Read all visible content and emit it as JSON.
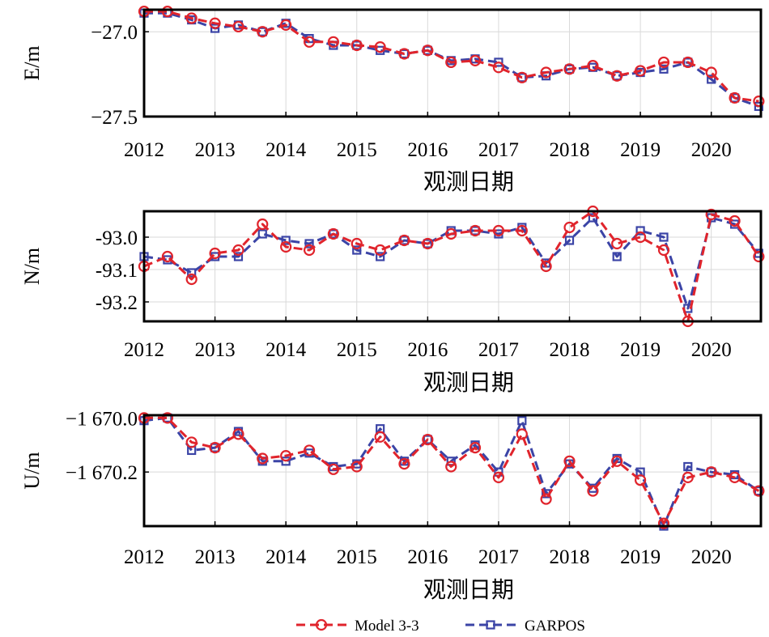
{
  "colors": {
    "model": "#e0242c",
    "garpos": "#3b44a6",
    "grid": "#d9d9d9",
    "axis": "#000000"
  },
  "legend": {
    "placement": "bottom-center"
  },
  "chart_data": [
    {
      "type": "line",
      "ylabel": "E/m",
      "xlabel": "观测日期",
      "ylim": [
        -27.5,
        -26.87
      ],
      "yticks": [
        -27.0,
        -27.5
      ],
      "ytick_labels": [
        "−27.0",
        "−27.5"
      ],
      "xticks": [
        2012,
        2013,
        2014,
        2015,
        2016,
        2017,
        2018,
        2019,
        2020
      ],
      "xtick_labels": [
        "2012",
        "2013",
        "2014",
        "2015",
        "2016",
        "2017",
        "2018",
        "2019",
        "2020"
      ],
      "xlim": [
        2012,
        2020.7
      ],
      "grid": true,
      "x": [
        2012.0,
        2012.33,
        2012.67,
        2013.0,
        2013.33,
        2013.67,
        2014.0,
        2014.33,
        2014.67,
        2015.0,
        2015.33,
        2015.67,
        2016.0,
        2016.33,
        2016.67,
        2017.0,
        2017.33,
        2017.67,
        2018.0,
        2018.33,
        2018.67,
        2019.0,
        2019.33,
        2019.67,
        2020.0,
        2020.33,
        2020.67
      ],
      "series": [
        {
          "name": "Model 3-3",
          "marker": "circle",
          "values": [
            -26.88,
            -26.88,
            -26.92,
            -26.95,
            -26.97,
            -27.0,
            -26.96,
            -27.06,
            -27.06,
            -27.08,
            -27.09,
            -27.13,
            -27.11,
            -27.18,
            -27.17,
            -27.21,
            -27.27,
            -27.24,
            -27.22,
            -27.2,
            -27.26,
            -27.23,
            -27.18,
            -27.18,
            -27.24,
            -27.39,
            -27.41
          ]
        },
        {
          "name": "GARPOS",
          "marker": "square",
          "values": [
            -26.89,
            -26.89,
            -26.93,
            -26.98,
            -26.96,
            -27.0,
            -26.95,
            -27.04,
            -27.08,
            -27.08,
            -27.11,
            -27.13,
            -27.11,
            -27.17,
            -27.16,
            -27.18,
            -27.27,
            -27.26,
            -27.22,
            -27.21,
            -27.26,
            -27.24,
            -27.22,
            -27.18,
            -27.28,
            -27.39,
            -27.44
          ]
        }
      ]
    },
    {
      "type": "line",
      "ylabel": "N/m",
      "xlabel": "观测日期",
      "ylim": [
        -93.26,
        -92.92
      ],
      "yticks": [
        -93.0,
        -93.1,
        -93.2
      ],
      "ytick_labels": [
        "-93.0",
        "-93.1",
        "-93.2"
      ],
      "xticks": [
        2012,
        2013,
        2014,
        2015,
        2016,
        2017,
        2018,
        2019,
        2020
      ],
      "xtick_labels": [
        "2012",
        "2013",
        "2014",
        "2015",
        "2016",
        "2017",
        "2018",
        "2019",
        "2020"
      ],
      "xlim": [
        2012,
        2020.7
      ],
      "grid": true,
      "x": [
        2012.0,
        2012.33,
        2012.67,
        2013.0,
        2013.33,
        2013.67,
        2014.0,
        2014.33,
        2014.67,
        2015.0,
        2015.33,
        2015.67,
        2016.0,
        2016.33,
        2016.67,
        2017.0,
        2017.33,
        2017.67,
        2018.0,
        2018.33,
        2018.67,
        2019.0,
        2019.33,
        2019.67,
        2020.0,
        2020.33,
        2020.67
      ],
      "series": [
        {
          "name": "Model 3-3",
          "marker": "circle",
          "values": [
            -93.09,
            -93.06,
            -93.13,
            -93.05,
            -93.04,
            -92.96,
            -93.03,
            -93.04,
            -92.99,
            -93.02,
            -93.04,
            -93.01,
            -93.02,
            -92.99,
            -92.98,
            -92.98,
            -92.98,
            -93.09,
            -92.97,
            -92.92,
            -93.02,
            -93.0,
            -93.04,
            -93.26,
            -92.93,
            -92.95,
            -93.06
          ]
        },
        {
          "name": "GARPOS",
          "marker": "square",
          "values": [
            -93.06,
            -93.07,
            -93.11,
            -93.06,
            -93.06,
            -92.99,
            -93.01,
            -93.02,
            -92.99,
            -93.04,
            -93.06,
            -93.01,
            -93.02,
            -92.98,
            -92.98,
            -92.99,
            -92.97,
            -93.08,
            -93.01,
            -92.94,
            -93.06,
            -92.98,
            -93.0,
            -93.22,
            -92.94,
            -92.96,
            -93.05
          ]
        }
      ]
    },
    {
      "type": "line",
      "ylabel": "U/m",
      "xlabel": "观测日期",
      "ylim": [
        -1670.4,
        -1669.99
      ],
      "yticks": [
        -1670.0,
        -1670.2
      ],
      "ytick_labels": [
        "−1 670.0",
        "−1 670.2"
      ],
      "xticks": [
        2012,
        2013,
        2014,
        2015,
        2016,
        2017,
        2018,
        2019,
        2020
      ],
      "xtick_labels": [
        "2012",
        "2013",
        "2014",
        "2015",
        "2016",
        "2017",
        "2018",
        "2019",
        "2020"
      ],
      "xlim": [
        2012,
        2020.7
      ],
      "grid": true,
      "x": [
        2012.0,
        2012.33,
        2012.67,
        2013.0,
        2013.33,
        2013.67,
        2014.0,
        2014.33,
        2014.67,
        2015.0,
        2015.33,
        2015.67,
        2016.0,
        2016.33,
        2016.67,
        2017.0,
        2017.33,
        2017.67,
        2018.0,
        2018.33,
        2018.67,
        2019.0,
        2019.33,
        2019.67,
        2020.0,
        2020.33,
        2020.67
      ],
      "series": [
        {
          "name": "Model 3-3",
          "marker": "circle",
          "values": [
            -1670.0,
            -1670.0,
            -1670.09,
            -1670.11,
            -1670.06,
            -1670.15,
            -1670.14,
            -1670.12,
            -1670.19,
            -1670.18,
            -1670.07,
            -1670.17,
            -1670.08,
            -1670.18,
            -1670.11,
            -1670.22,
            -1670.06,
            -1670.3,
            -1670.16,
            -1670.27,
            -1670.16,
            -1670.23,
            -1670.39,
            -1670.22,
            -1670.2,
            -1670.22,
            -1670.27
          ]
        },
        {
          "name": "GARPOS",
          "marker": "square",
          "values": [
            -1670.01,
            -1670.0,
            -1670.12,
            -1670.11,
            -1670.05,
            -1670.16,
            -1670.16,
            -1670.13,
            -1670.18,
            -1670.17,
            -1670.04,
            -1670.16,
            -1670.08,
            -1670.16,
            -1670.1,
            -1670.2,
            -1670.01,
            -1670.28,
            -1670.17,
            -1670.26,
            -1670.15,
            -1670.2,
            -1670.4,
            -1670.18,
            -1670.2,
            -1670.21,
            -1670.27
          ]
        }
      ]
    }
  ]
}
